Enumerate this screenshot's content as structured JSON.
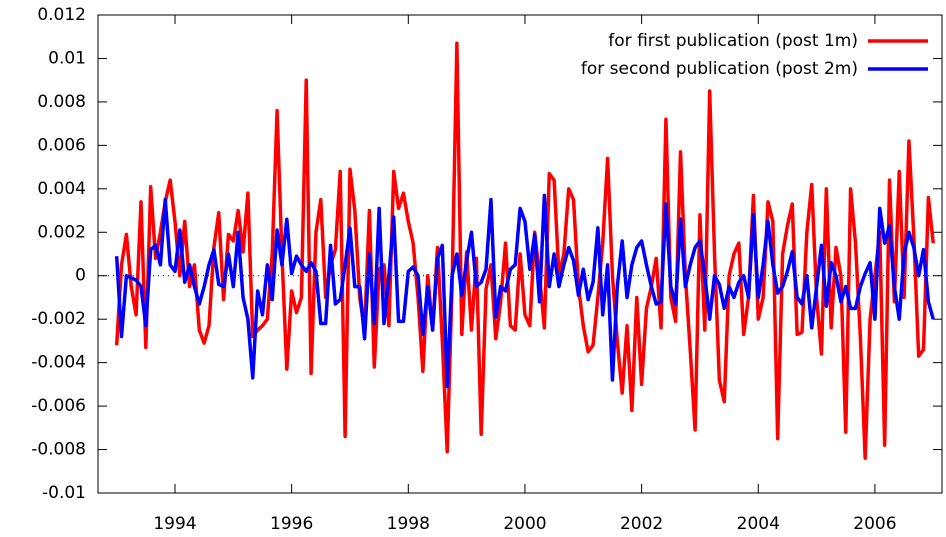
{
  "chart_data": {
    "type": "line",
    "legend": "top-right",
    "grid": false,
    "zero_line": true,
    "xlim": [
      1992.68,
      2007.15
    ],
    "xticks": [
      1994,
      1996,
      1998,
      2000,
      2002,
      2004,
      2006
    ],
    "ylim": [
      -0.01,
      0.012
    ],
    "yticks": [
      -0.01,
      -0.008,
      -0.006,
      -0.004,
      -0.002,
      0,
      0.002,
      0.004,
      0.006,
      0.008,
      0.01,
      0.012
    ],
    "x": [
      1993,
      1993.083,
      1993.167,
      1993.25,
      1993.333,
      1993.417,
      1993.5,
      1993.583,
      1993.667,
      1993.75,
      1993.833,
      1993.917,
      1994,
      1994.083,
      1994.167,
      1994.25,
      1994.333,
      1994.417,
      1994.5,
      1994.583,
      1994.667,
      1994.75,
      1994.833,
      1994.917,
      1995,
      1995.083,
      1995.167,
      1995.25,
      1995.333,
      1995.417,
      1995.5,
      1995.583,
      1995.667,
      1995.75,
      1995.833,
      1995.917,
      1996,
      1996.083,
      1996.167,
      1996.25,
      1996.333,
      1996.417,
      1996.5,
      1996.583,
      1996.667,
      1996.75,
      1996.833,
      1996.917,
      1997,
      1997.083,
      1997.167,
      1997.25,
      1997.333,
      1997.417,
      1997.5,
      1997.583,
      1997.667,
      1997.75,
      1997.833,
      1997.917,
      1998,
      1998.083,
      1998.167,
      1998.25,
      1998.333,
      1998.417,
      1998.5,
      1998.583,
      1998.667,
      1998.75,
      1998.833,
      1998.917,
      1999,
      1999.083,
      1999.167,
      1999.25,
      1999.333,
      1999.417,
      1999.5,
      1999.583,
      1999.667,
      1999.75,
      1999.833,
      1999.917,
      2000,
      2000.083,
      2000.167,
      2000.25,
      2000.333,
      2000.417,
      2000.5,
      2000.583,
      2000.667,
      2000.75,
      2000.833,
      2000.917,
      2001,
      2001.083,
      2001.167,
      2001.25,
      2001.333,
      2001.417,
      2001.5,
      2001.583,
      2001.667,
      2001.75,
      2001.833,
      2001.917,
      2002,
      2002.083,
      2002.167,
      2002.25,
      2002.333,
      2002.417,
      2002.5,
      2002.583,
      2002.667,
      2002.75,
      2002.833,
      2002.917,
      2003,
      2003.083,
      2003.167,
      2003.25,
      2003.333,
      2003.417,
      2003.5,
      2003.583,
      2003.667,
      2003.75,
      2003.833,
      2003.917,
      2004,
      2004.083,
      2004.167,
      2004.25,
      2004.333,
      2004.417,
      2004.5,
      2004.583,
      2004.667,
      2004.75,
      2004.833,
      2004.917,
      2005,
      2005.083,
      2005.167,
      2005.25,
      2005.333,
      2005.417,
      2005.5,
      2005.583,
      2005.667,
      2005.75,
      2005.833,
      2005.917,
      2006,
      2006.083,
      2006.167,
      2006.25,
      2006.333,
      2006.417,
      2006.5,
      2006.583,
      2006.667,
      2006.75,
      2006.833,
      2006.917,
      2007
    ],
    "series": [
      {
        "name": "for first publication (post 1m)",
        "color": "#ff0000",
        "values": [
          -0.0032,
          0.0005,
          0.0019,
          -0.0005,
          -0.0018,
          0.0034,
          -0.0033,
          0.0041,
          0.0008,
          0.002,
          0.0034,
          0.0044,
          0.0025,
          0,
          0.0025,
          -0.0005,
          0.0005,
          -0.0025,
          -0.0031,
          -0.0023,
          0.0013,
          0.0029,
          -0.0011,
          0.0019,
          0.0016,
          0.003,
          0.0011,
          0.0038,
          -0.0028,
          -0.0025,
          -0.0023,
          -0.002,
          0.001,
          0.0076,
          0.001,
          -0.0043,
          -0.0007,
          -0.0017,
          -0.001,
          0.009,
          -0.0045,
          0.002,
          0.0035,
          -0.001,
          0.0005,
          0.0012,
          0.0048,
          -0.0074,
          0.0049,
          0.003,
          -0.001,
          -0.0025,
          0.003,
          -0.0042,
          0.0003,
          0.0005,
          -0.0023,
          0.0048,
          0.0031,
          0.0038,
          0.0025,
          0.0015,
          -0.001,
          -0.0044,
          0,
          -0.0025,
          0.0013,
          -0.003,
          -0.0081,
          -0.0005,
          0.0107,
          -0.0027,
          0.0011,
          -0.0025,
          0.0008,
          -0.0073,
          -0.0006,
          0.0005,
          -0.0029,
          -0.0012,
          0.0015,
          -0.0023,
          -0.0025,
          0.001,
          -0.0018,
          -0.0023,
          0.002,
          0,
          -0.0024,
          0.0047,
          0.0044,
          0,
          0.001,
          0.004,
          0.0035,
          -0.0005,
          -0.0023,
          -0.0035,
          -0.0032,
          -0.001,
          0.0015,
          0.0054,
          0,
          -0.003,
          -0.0054,
          -0.0023,
          -0.0062,
          -0.001,
          -0.005,
          -0.0015,
          -0.0005,
          0.0008,
          -0.0024,
          0.0072,
          -0.001,
          -0.0021,
          0.0057,
          0,
          -0.0034,
          -0.0071,
          0.0028,
          -0.0025,
          0.0085,
          0.001,
          -0.0048,
          -0.0058,
          0,
          0.001,
          0.0015,
          -0.0027,
          -0.001,
          0.0037,
          -0.002,
          -0.001,
          0.0034,
          0.0025,
          -0.0075,
          0.001,
          0.0023,
          0.0033,
          -0.0027,
          -0.0026,
          0.002,
          0.0042,
          -0.001,
          -0.0036,
          0.004,
          -0.0024,
          0.0013,
          0,
          -0.0072,
          0.004,
          0.0015,
          -0.0028,
          -0.0084,
          -0.002,
          0,
          0.002,
          -0.0078,
          0.0044,
          -0.0012,
          0.0048,
          -0.001,
          0.0062,
          0.0018,
          -0.0037,
          -0.0034,
          0.0036,
          0.0015
        ]
      },
      {
        "name": "for second publication (post 2m)",
        "color": "#0000ff",
        "values": [
          0.0009,
          -0.0028,
          0,
          -0.0001,
          -0.0002,
          -0.0005,
          -0.0023,
          0.0012,
          0.0014,
          0.0005,
          0.0035,
          0.0005,
          0.0002,
          0.0021,
          -0.0003,
          0.0005,
          -0.0005,
          -0.0013,
          -0.0005,
          0.0005,
          0.0012,
          -0.0004,
          -0.0005,
          0.001,
          -0.0005,
          0.002,
          -0.001,
          -0.002,
          -0.0047,
          -0.0007,
          -0.0018,
          0.0005,
          -0.0011,
          0.0021,
          0.0005,
          0.0026,
          0.0001,
          0.0009,
          0.0005,
          0.0002,
          0.0006,
          0.0002,
          -0.0022,
          -0.0022,
          0.0014,
          -0.0013,
          -0.0011,
          0.0005,
          0.0022,
          -0.0005,
          -0.0005,
          -0.0029,
          0.001,
          -0.0022,
          0.0031,
          -0.0022,
          0,
          0.0027,
          -0.0021,
          -0.0021,
          0.0002,
          0.0004,
          0,
          -0.0027,
          -0.0005,
          -0.0025,
          0.0008,
          0.0014,
          -0.0051,
          0,
          0.001,
          -0.0009,
          0.0007,
          0.002,
          -0.0005,
          -0.0003,
          0.0003,
          0.0035,
          -0.0019,
          -0.0005,
          -0.0007,
          0.0003,
          0.0005,
          0.0031,
          0.0025,
          0.0003,
          0.0019,
          -0.0012,
          0.0037,
          -0.0005,
          0.001,
          -0.0005,
          0.0005,
          0.0013,
          0.0007,
          -0.0009,
          0.0003,
          -0.0011,
          -0.0003,
          0.0022,
          -0.0018,
          0.0005,
          -0.0048,
          -0.0005,
          0.0016,
          -0.001,
          0.0005,
          0.0013,
          0.0016,
          0.0005,
          -0.0005,
          -0.0013,
          -0.0012,
          0.0033,
          -0.0005,
          -0.0013,
          0.0026,
          -0.0005,
          0.0005,
          0.0013,
          0.0016,
          0,
          -0.002,
          0,
          -0.0004,
          -0.0015,
          -0.0005,
          -0.001,
          -0.0003,
          0,
          -0.001,
          0.0028,
          -0.001,
          0.0005,
          0.0025,
          0.0005,
          -0.0008,
          -0.0005,
          0.0002,
          0.0011,
          -0.001,
          -0.0013,
          0,
          -0.0024,
          -0.0005,
          0.0014,
          -0.0014,
          0.0006,
          0,
          -0.0012,
          -0.0005,
          -0.0015,
          -0.0015,
          -0.0005,
          0.0001,
          0.0006,
          -0.002,
          0.0031,
          0.0015,
          0.0023,
          -0.0005,
          -0.002,
          0.001,
          0.002,
          0.0013,
          0,
          0.0012,
          -0.0012,
          -0.002
        ]
      }
    ]
  }
}
